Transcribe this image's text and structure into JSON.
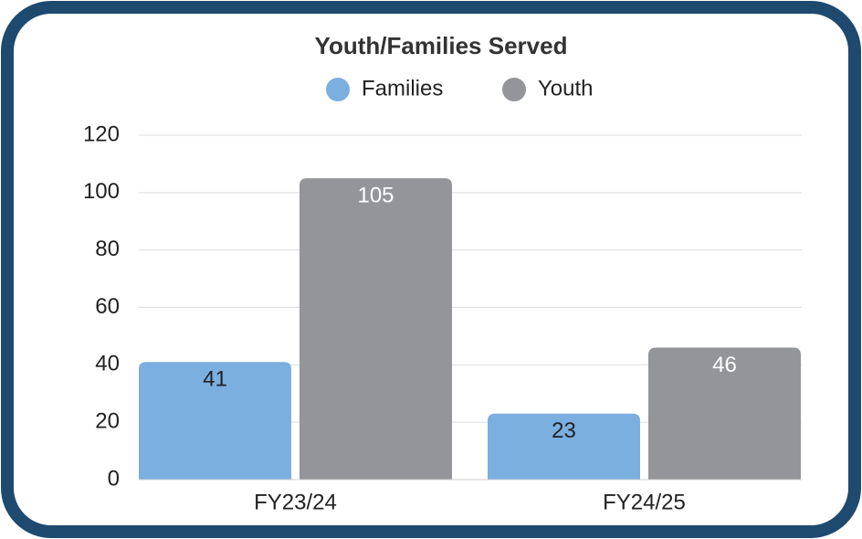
{
  "chart_data": {
    "type": "bar",
    "title": "Youth/Families Served",
    "categories": [
      "FY23/24",
      "FY24/25"
    ],
    "series": [
      {
        "name": "Families",
        "color": "#7aafe0",
        "values": [
          41,
          23
        ]
      },
      {
        "name": "Youth",
        "color": "#939598",
        "values": [
          105,
          46
        ]
      }
    ],
    "ylim": [
      0,
      120
    ],
    "yticks": [
      0,
      20,
      40,
      60,
      80,
      100,
      120
    ],
    "grid": true,
    "legend": "top"
  }
}
